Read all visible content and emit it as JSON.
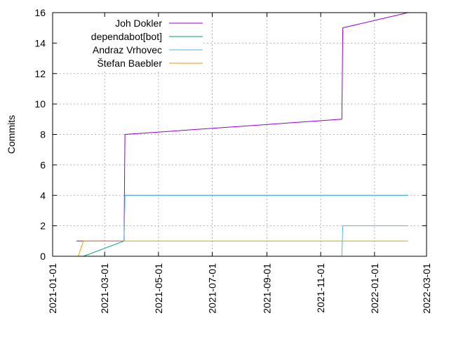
{
  "chart_data": {
    "type": "line",
    "title": "",
    "xlabel": "",
    "ylabel": "Commits",
    "xlim": [
      "2021-01-01",
      "2022-03-01"
    ],
    "ylim": [
      0,
      16
    ],
    "x_ticks": [
      "2021-01-01",
      "2021-03-01",
      "2021-05-01",
      "2021-07-01",
      "2021-09-01",
      "2021-11-01",
      "2022-01-01",
      "2022-03-01"
    ],
    "y_ticks": [
      0,
      2,
      4,
      6,
      8,
      10,
      12,
      14,
      16
    ],
    "grid": true,
    "legend_position": "top-left",
    "series": [
      {
        "name": "Joh Dokler",
        "color": "#9400d3",
        "points": [
          [
            "2021-01-28",
            1
          ],
          [
            "2021-02-05",
            1
          ],
          [
            "2021-03-23",
            1
          ],
          [
            "2021-03-24",
            8
          ],
          [
            "2021-11-25",
            9
          ],
          [
            "2021-11-26",
            15
          ],
          [
            "2022-02-08",
            16
          ]
        ]
      },
      {
        "name": "dependabot[bot]",
        "color": "#009e73",
        "points": [
          [
            "2021-02-05",
            0
          ],
          [
            "2021-03-23",
            1
          ],
          [
            "2021-03-24",
            4
          ],
          [
            "2022-02-08",
            4
          ]
        ]
      },
      {
        "name": "Andraz Vrhovec",
        "color": "#56b4e9",
        "points": [
          [
            "2021-03-23",
            1
          ],
          [
            "2021-03-24",
            4
          ],
          [
            "2021-03-24",
            4
          ],
          [
            "2022-02-08",
            4
          ]
        ],
        "points_2": [
          [
            "2021-11-25",
            0
          ],
          [
            "2021-11-26",
            2
          ],
          [
            "2022-02-08",
            2
          ]
        ]
      },
      {
        "name": "Štefan Baebler",
        "color": "#e69f00",
        "points": [
          [
            "2021-01-30",
            0
          ],
          [
            "2021-02-05",
            1
          ],
          [
            "2022-02-08",
            1
          ]
        ]
      }
    ]
  }
}
